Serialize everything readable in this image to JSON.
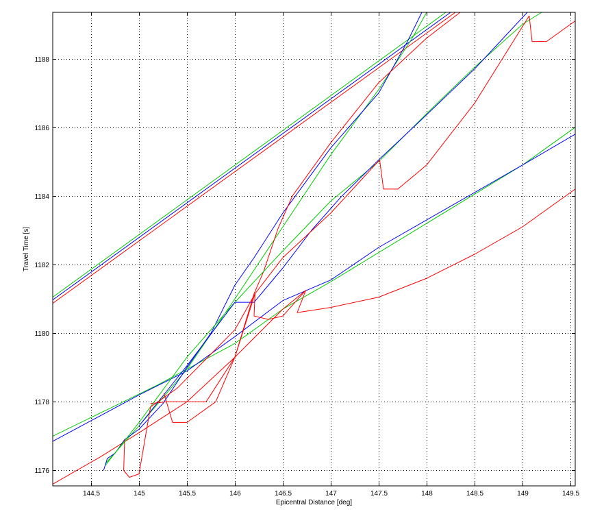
{
  "chart_data": {
    "type": "line",
    "title": "",
    "xlabel": "Epicentral Distance [deg]",
    "ylabel": "Travel Time [s]",
    "xlim": [
      144.1,
      149.55
    ],
    "ylim": [
      1175.55,
      1189.35
    ],
    "xticks": [
      "144.5",
      "145",
      "145.5",
      "146",
      "146.5",
      "147",
      "147.5",
      "148",
      "148.5",
      "149",
      "149.5"
    ],
    "yticks": [
      "1176",
      "1178",
      "1180",
      "1182",
      "1184",
      "1186",
      "1188"
    ],
    "grid": true,
    "legend": "none",
    "colors": {
      "green": "#00cc00",
      "blue": "#0000ff",
      "red": "#ff0000",
      "axes": "#000000"
    },
    "series": [
      {
        "color": "green",
        "points": [
          [
            144.1,
            1181.05
          ],
          [
            148.2,
            1189.35
          ]
        ]
      },
      {
        "color": "blue",
        "points": [
          [
            144.1,
            1180.97
          ],
          [
            148.25,
            1189.35
          ]
        ]
      },
      {
        "color": "red",
        "points": [
          [
            144.1,
            1180.87
          ],
          [
            148.3,
            1189.35
          ]
        ]
      },
      {
        "color": "green",
        "points": [
          [
            144.1,
            1177.0
          ],
          [
            144.8,
            1177.95
          ],
          [
            145.2,
            1178.5
          ],
          [
            146.0,
            1179.7
          ],
          [
            146.5,
            1180.7
          ],
          [
            147.0,
            1181.5
          ],
          [
            148.0,
            1183.2
          ],
          [
            149.0,
            1184.9
          ],
          [
            149.55,
            1186.0
          ]
        ]
      },
      {
        "color": "blue",
        "points": [
          [
            144.1,
            1176.85
          ],
          [
            144.6,
            1177.6
          ],
          [
            145.0,
            1178.2
          ],
          [
            145.5,
            1178.9
          ],
          [
            146.0,
            1179.9
          ],
          [
            146.5,
            1180.95
          ],
          [
            147.0,
            1181.55
          ],
          [
            147.5,
            1182.5
          ],
          [
            148.0,
            1183.3
          ],
          [
            148.5,
            1184.1
          ],
          [
            149.0,
            1184.9
          ],
          [
            149.55,
            1185.8
          ]
        ]
      },
      {
        "color": "red",
        "points": [
          [
            144.1,
            1175.6
          ],
          [
            144.6,
            1176.4
          ],
          [
            145.0,
            1177.1
          ],
          [
            145.5,
            1178.0
          ],
          [
            146.0,
            1179.3
          ],
          [
            146.5,
            1180.7
          ],
          [
            146.74,
            1181.25
          ]
        ]
      },
      {
        "color": "red",
        "points": [
          [
            146.74,
            1181.25
          ],
          [
            146.65,
            1180.6
          ],
          [
            147.0,
            1180.75
          ],
          [
            147.5,
            1181.05
          ],
          [
            148.0,
            1181.6
          ],
          [
            148.5,
            1182.3
          ],
          [
            149.0,
            1183.1
          ],
          [
            149.55,
            1184.2
          ]
        ]
      },
      {
        "color": "green",
        "points": [
          [
            144.65,
            1176.2
          ],
          [
            145.0,
            1177.3
          ],
          [
            145.5,
            1178.95
          ],
          [
            146.0,
            1181.0
          ],
          [
            146.5,
            1183.1
          ],
          [
            147.0,
            1185.2
          ],
          [
            147.5,
            1187.1
          ],
          [
            147.85,
            1188.6
          ],
          [
            148.0,
            1189.35
          ]
        ]
      },
      {
        "color": "blue",
        "points": [
          [
            144.63,
            1176.0
          ],
          [
            144.67,
            1176.35
          ],
          [
            144.75,
            1176.5
          ],
          [
            144.85,
            1176.9
          ],
          [
            145.0,
            1177.2
          ],
          [
            145.25,
            1177.95
          ],
          [
            145.5,
            1179.0
          ],
          [
            145.75,
            1180.0
          ],
          [
            146.0,
            1181.4
          ],
          [
            146.2,
            1182.2
          ],
          [
            146.5,
            1183.5
          ],
          [
            147.0,
            1185.4
          ],
          [
            147.5,
            1187.0
          ],
          [
            147.8,
            1188.5
          ],
          [
            147.95,
            1189.35
          ]
        ]
      },
      {
        "color": "red",
        "points": [
          [
            146.45,
            1183.05
          ],
          [
            146.6,
            1184.0
          ],
          [
            147.0,
            1185.55
          ],
          [
            147.5,
            1187.3
          ],
          [
            148.0,
            1188.6
          ],
          [
            148.35,
            1189.35
          ]
        ]
      },
      {
        "color": "red",
        "points": [
          [
            146.45,
            1183.05
          ],
          [
            146.3,
            1181.8
          ],
          [
            146.2,
            1181.15
          ],
          [
            146.0,
            1179.3
          ],
          [
            145.7,
            1178.0
          ],
          [
            145.5,
            1178.0
          ],
          [
            145.3,
            1178.0
          ],
          [
            145.12,
            1177.95
          ]
        ]
      },
      {
        "color": "green",
        "points": [
          [
            144.65,
            1176.15
          ],
          [
            145.0,
            1177.4
          ],
          [
            145.5,
            1179.3
          ],
          [
            146.0,
            1180.9
          ],
          [
            146.5,
            1182.4
          ],
          [
            147.0,
            1183.85
          ],
          [
            147.5,
            1185.0
          ],
          [
            148.0,
            1186.4
          ],
          [
            148.5,
            1187.75
          ],
          [
            149.0,
            1189.0
          ],
          [
            149.2,
            1189.35
          ]
        ]
      },
      {
        "color": "blue",
        "points": [
          [
            145.0,
            1177.3
          ],
          [
            145.5,
            1179.05
          ],
          [
            146.0,
            1180.9
          ],
          [
            146.2,
            1180.9
          ],
          [
            146.5,
            1181.9
          ],
          [
            146.8,
            1183.0
          ],
          [
            147.1,
            1183.95
          ],
          [
            147.5,
            1185.05
          ],
          [
            147.9,
            1186.1
          ],
          [
            148.5,
            1187.7
          ],
          [
            149.05,
            1189.35
          ]
        ]
      },
      {
        "color": "red",
        "points": [
          [
            145.12,
            1177.85
          ],
          [
            145.4,
            1178.4
          ],
          [
            146.0,
            1180.1
          ],
          [
            146.21,
            1181.15
          ],
          [
            146.5,
            1182.2
          ],
          [
            147.0,
            1183.5
          ],
          [
            147.51,
            1185.05
          ]
        ]
      },
      {
        "color": "red",
        "points": [
          [
            146.21,
            1181.15
          ],
          [
            146.2,
            1180.5
          ],
          [
            146.35,
            1180.4
          ],
          [
            146.5,
            1180.5
          ],
          [
            146.74,
            1181.25
          ]
        ]
      },
      {
        "color": "red",
        "points": [
          [
            147.51,
            1185.05
          ],
          [
            147.55,
            1184.2
          ],
          [
            147.7,
            1184.2
          ],
          [
            148.0,
            1184.9
          ],
          [
            148.5,
            1186.7
          ],
          [
            149.07,
            1189.25
          ]
        ]
      },
      {
        "color": "red",
        "points": [
          [
            149.07,
            1189.25
          ],
          [
            149.1,
            1188.5
          ],
          [
            149.25,
            1188.5
          ],
          [
            149.55,
            1189.1
          ]
        ]
      },
      {
        "color": "red",
        "points": [
          [
            144.85,
            1176.9
          ],
          [
            144.84,
            1176.0
          ],
          [
            144.9,
            1175.8
          ],
          [
            145.0,
            1175.9
          ],
          [
            145.12,
            1177.85
          ]
        ]
      },
      {
        "color": "red",
        "points": [
          [
            145.26,
            1178.25
          ],
          [
            145.35,
            1177.4
          ],
          [
            145.5,
            1177.4
          ],
          [
            145.8,
            1178.0
          ],
          [
            146.0,
            1179.3
          ],
          [
            146.21,
            1181.15
          ]
        ]
      }
    ]
  }
}
